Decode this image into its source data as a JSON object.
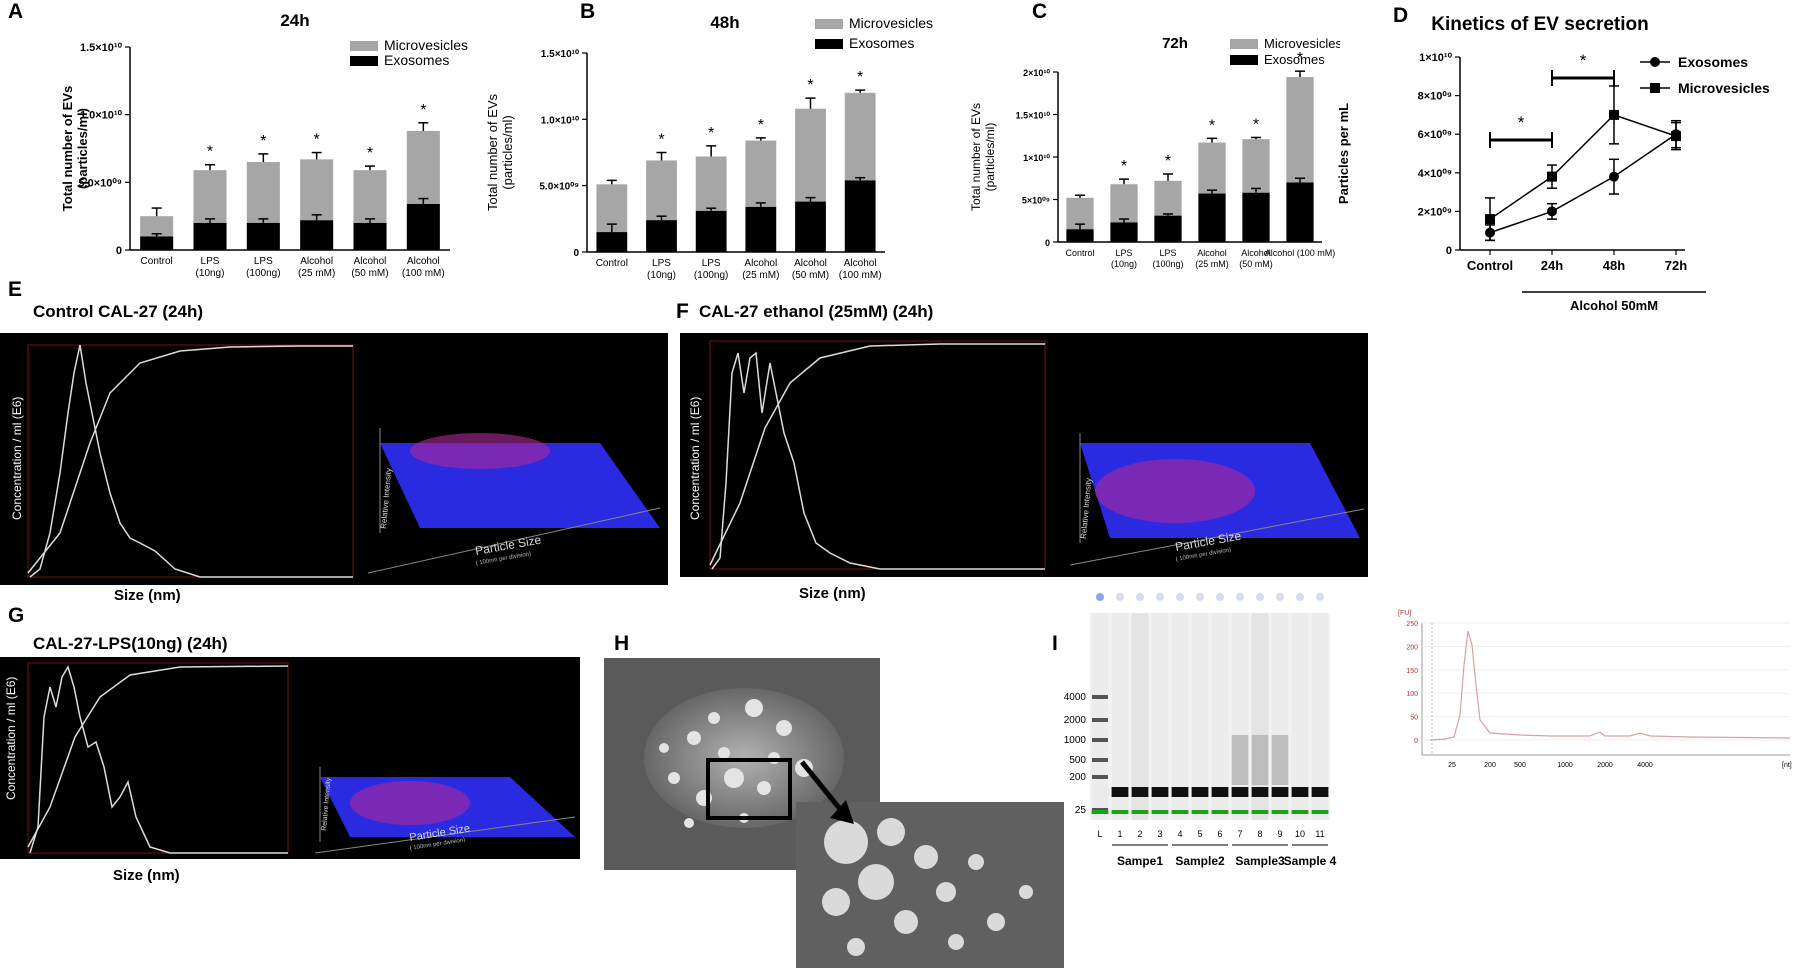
{
  "panel_letters": {
    "A": "A",
    "B": "B",
    "C": "C",
    "D": "D",
    "E": "E",
    "F": "F",
    "G": "G",
    "H": "H",
    "I": "I"
  },
  "chart_data": [
    {
      "type": "bar",
      "stacked": true,
      "title": "24h",
      "ylabel": "Total number of EVs\n(particles/ml)",
      "ylim": [
        0,
        15000000000.0
      ],
      "yticks": [
        {
          "value": 0,
          "label": "0"
        },
        {
          "value": 5000000000.0,
          "label": "5.0×10⁰⁹"
        },
        {
          "value": 10000000000.0,
          "label": "1.0×10¹⁰"
        },
        {
          "value": 15000000000.0,
          "label": "1.5×10¹⁰"
        }
      ],
      "categories": [
        "Control",
        "LPS\n(10ng)",
        "LPS\n(100ng)",
        "Alcohol\n(25 mM)",
        "Alcohol\n(50 mM)",
        "Alcohol\n(100 mM)"
      ],
      "series": [
        {
          "name": "Exosomes",
          "color": "#000000",
          "values": [
            1000000000.0,
            2000000000.0,
            2000000000.0,
            2200000000.0,
            2000000000.0,
            3400000000.0
          ],
          "errors": [
            200000000.0,
            300000000.0,
            300000000.0,
            400000000.0,
            300000000.0,
            400000000.0
          ]
        },
        {
          "name": "Microvesicles",
          "color": "#a6a6a6",
          "values": [
            1500000000.0,
            3900000000.0,
            4500000000.0,
            4500000000.0,
            3900000000.0,
            5400000000.0
          ],
          "errors": [
            600000000.0,
            400000000.0,
            600000000.0,
            500000000.0,
            300000000.0,
            600000000.0
          ]
        }
      ],
      "annotations": [
        "",
        "*",
        "*",
        "*",
        "*",
        "*"
      ],
      "legend": "top-right"
    },
    {
      "type": "bar",
      "stacked": true,
      "title": "48h",
      "ylabel": "Total number of EVs\n(particles/ml)",
      "ylim": [
        0,
        15000000000.0
      ],
      "yticks": [
        {
          "value": 0,
          "label": "0"
        },
        {
          "value": 5000000000.0,
          "label": "5.0×10⁰⁹"
        },
        {
          "value": 10000000000.0,
          "label": "1.0×10¹⁰"
        },
        {
          "value": 15000000000.0,
          "label": "1.5×10¹⁰"
        }
      ],
      "categories": [
        "Control",
        "LPS\n(10ng)",
        "LPS\n(100ng)",
        "Alcohol\n(25 mM)",
        "Alcohol\n(50 mM)",
        "Alcohol\n(100 mM)"
      ],
      "series": [
        {
          "name": "Exosomes",
          "color": "#000000",
          "values": [
            1500000000.0,
            2400000000.0,
            3100000000.0,
            3400000000.0,
            3800000000.0,
            5400000000.0
          ],
          "errors": [
            600000000.0,
            300000000.0,
            200000000.0,
            300000000.0,
            300000000.0,
            200000000.0
          ]
        },
        {
          "name": "Microvesicles",
          "color": "#a6a6a6",
          "values": [
            3600000000.0,
            4500000000.0,
            4100000000.0,
            5000000000.0,
            7000000000.0,
            6600000000.0
          ],
          "errors": [
            300000000.0,
            600000000.0,
            800000000.0,
            200000000.0,
            800000000.0,
            200000000.0
          ]
        }
      ],
      "annotations": [
        "",
        "*",
        "*",
        "*",
        "*",
        "*"
      ],
      "legend": "top-right"
    },
    {
      "type": "bar",
      "stacked": true,
      "title": "72h",
      "ylabel": "Total number of EVs\n(particles/ml)",
      "ylim": [
        0,
        20000000000.0
      ],
      "yticks": [
        {
          "value": 0,
          "label": "0"
        },
        {
          "value": 5000000000.0,
          "label": "5×10⁰⁹"
        },
        {
          "value": 10000000000.0,
          "label": "1×10¹⁰"
        },
        {
          "value": 15000000000.0,
          "label": "1.5×10¹⁰"
        },
        {
          "value": 20000000000.0,
          "label": "2×10¹⁰"
        }
      ],
      "categories": [
        "Control",
        "LPS\n(10ng)",
        "LPS\n(100ng)",
        "Alcohol\n(25 mM)",
        "Alcohol\n(50 mM)",
        "Alcohol (100 mM)"
      ],
      "series": [
        {
          "name": "Exosomes",
          "color": "#000000",
          "values": [
            1500000000.0,
            2300000000.0,
            3100000000.0,
            5700000000.0,
            5800000000.0,
            7000000000.0
          ],
          "errors": [
            600000000.0,
            400000000.0,
            200000000.0,
            400000000.0,
            500000000.0,
            500000000.0
          ]
        },
        {
          "name": "Microvesicles",
          "color": "#a6a6a6",
          "values": [
            3700000000.0,
            4500000000.0,
            4100000000.0,
            6000000000.0,
            6300000000.0,
            12400000000.0
          ],
          "errors": [
            300000000.0,
            600000000.0,
            800000000.0,
            500000000.0,
            200000000.0,
            700000000.0
          ]
        }
      ],
      "annotations": [
        "",
        "*",
        "*",
        "*",
        "*",
        "*"
      ],
      "legend": "top-right"
    },
    {
      "type": "line",
      "title": "Kinetics of EV secretion",
      "ylabel": "Particles per mL",
      "ylim": [
        0,
        10000000000.0
      ],
      "yticks": [
        {
          "value": 0,
          "label": "0"
        },
        {
          "value": 2000000000.0,
          "label": "2×10⁰⁹"
        },
        {
          "value": 4000000000.0,
          "label": "4×10⁰⁹"
        },
        {
          "value": 6000000000.0,
          "label": "6×10⁰⁹"
        },
        {
          "value": 8000000000.0,
          "label": "8×10⁰⁹"
        },
        {
          "value": 10000000000.0,
          "label": "1×10¹⁰"
        }
      ],
      "categories": [
        "Control",
        "24h",
        "48h",
        "72h"
      ],
      "series": [
        {
          "name": "Exosomes",
          "marker": "circle",
          "values": [
            900000000.0,
            2000000000.0,
            3800000000.0,
            6000000000.0
          ],
          "errors": [
            400000000.0,
            400000000.0,
            900000000.0,
            700000000.0
          ]
        },
        {
          "name": "Microvesicles",
          "marker": "square",
          "values": [
            1600000000.0,
            3800000000.0,
            7000000000.0,
            5900000000.0
          ],
          "errors": [
            1100000000.0,
            600000000.0,
            1500000000.0,
            700000000.0
          ]
        }
      ],
      "brackets": [
        {
          "from": 0,
          "to": 1,
          "label": "*"
        },
        {
          "from": 1,
          "to": 2,
          "label": "*"
        }
      ],
      "group_label": "Alcohol 50mM",
      "legend": "top-right"
    }
  ],
  "nta": {
    "E": {
      "title": "Control CAL-27 (24h)",
      "ylabel": "Concentration / ml (E6)",
      "xlabel": "Size (nm)",
      "axis3d_label": "Particle Size",
      "axis3d_sub": "( 100nm per division)",
      "z_label": "Relative Intensity"
    },
    "F": {
      "title": "CAL-27 ethanol (25mM) (24h)",
      "ylabel": "Concentration / ml (E6)",
      "xlabel": "Size (nm)",
      "axis3d_label": "Particle Size",
      "axis3d_sub": "( 100nm per division)",
      "z_label": "Relative Intensity"
    },
    "G": {
      "title": "CAL-27-LPS(10ng) (24h)",
      "ylabel": "Concentration / ml (E6)",
      "xlabel": "Size (nm)",
      "axis3d_label": "Particle Size",
      "axis3d_sub": "( 100nm per division)",
      "z_label": "Relative Intensity"
    }
  },
  "gel": {
    "ladder_labels": [
      "4000",
      "2000",
      "1000",
      "500",
      "200",
      "25"
    ],
    "lane_labels": [
      "L",
      "1",
      "2",
      "3",
      "4",
      "5",
      "6",
      "7",
      "8",
      "9",
      "10",
      "11"
    ],
    "sample_groups": [
      "Sampe1",
      "Sample2",
      "Sample3",
      "Sample 4"
    ],
    "trace_ylabel": "[FU]",
    "trace_yticks": [
      "250",
      "200",
      "150",
      "100",
      "50",
      "0"
    ],
    "trace_xticks": [
      "25",
      "200",
      "500",
      "1000",
      "2000",
      "4000"
    ],
    "trace_xunit": "[nt]"
  }
}
